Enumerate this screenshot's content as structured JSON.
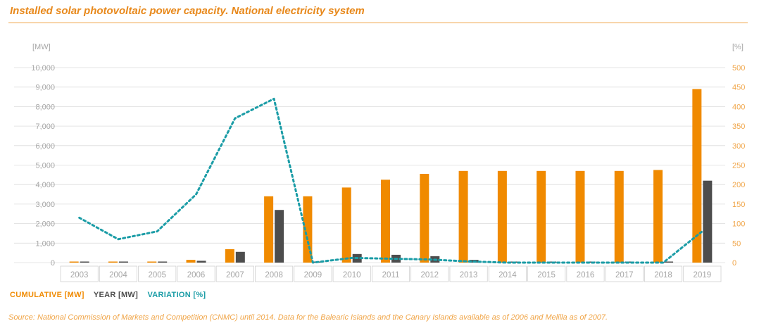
{
  "title": "Installed solar photovoltaic power capacity. National electricity system",
  "colors": {
    "title": "#e8891c",
    "cumulative": "#f08a00",
    "year": "#4d4d4d",
    "variation": "#1a9ca6",
    "axis_text": "#a6a6a6",
    "right_axis_text": "#f0a548",
    "grid": "#dcdcdc"
  },
  "legend": {
    "cumulative": "CUMULATIVE  [MW]",
    "year": "YEAR [MW]",
    "variation": "VARIATION  [%]"
  },
  "source": "Source: National Commission of Markets and Competition (CNMC) until 2014. Data for the Balearic Islands and the Canary Islands available as of 2006 and Melilla as of 2007.",
  "chart_data": {
    "type": "bar",
    "categories": [
      "2003",
      "2004",
      "2005",
      "2006",
      "2007",
      "2008",
      "2009",
      "2010",
      "2011",
      "2012",
      "2013",
      "2014",
      "2015",
      "2016",
      "2017",
      "2018",
      "2019"
    ],
    "ylabel": "[MW]",
    "y2label": "[%]",
    "ylim": [
      0,
      10000
    ],
    "y2lim": [
      0,
      500
    ],
    "yticks": [
      "0",
      "1,000",
      "2,000",
      "3,000",
      "4,000",
      "5,000",
      "6,000",
      "7,000",
      "8,000",
      "9,000",
      "10,000"
    ],
    "y2ticks": [
      "0",
      "50",
      "100",
      "150",
      "200",
      "250",
      "300",
      "350",
      "400",
      "450",
      "500"
    ],
    "grid": true,
    "legend_position": "bottom-left",
    "series": [
      {
        "name": "CUMULATIVE  [MW]",
        "kind": "bar",
        "axis": "left",
        "values": [
          12,
          22,
          48,
          140,
          690,
          3400,
          3400,
          3850,
          4250,
          4550,
          4700,
          4700,
          4700,
          4700,
          4700,
          4750,
          8900
        ]
      },
      {
        "name": "YEAR [MW]",
        "kind": "bar",
        "axis": "left",
        "values": [
          6,
          10,
          26,
          92,
          550,
          2700,
          20,
          440,
          400,
          330,
          140,
          2,
          1,
          1,
          1,
          20,
          4200
        ]
      },
      {
        "name": "VARIATION  [%]",
        "kind": "line",
        "axis": "right",
        "values": [
          115,
          60,
          80,
          175,
          370,
          420,
          0,
          12,
          10,
          8,
          3,
          0,
          0,
          0,
          0,
          0,
          80
        ]
      }
    ]
  }
}
